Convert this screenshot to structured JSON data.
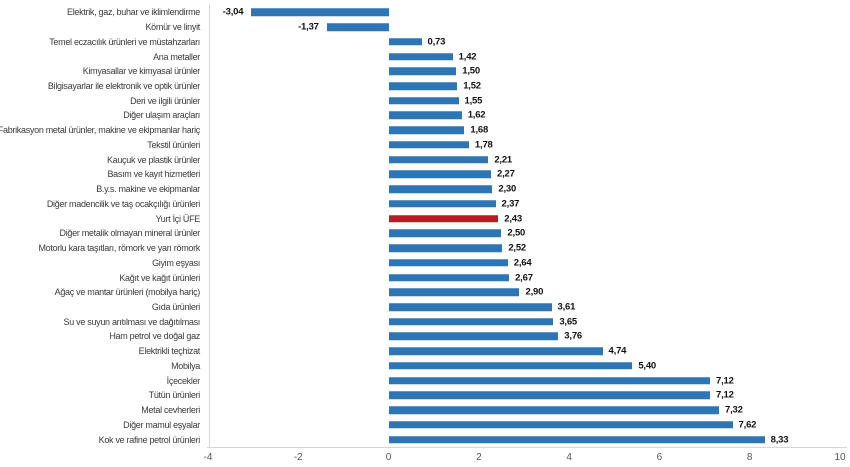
{
  "chart_data": {
    "type": "bar",
    "orientation": "horizontal",
    "title": "",
    "xlabel": "",
    "ylabel": "",
    "grid": false,
    "legend": false,
    "xlim": [
      -4,
      10
    ],
    "x_ticks": [
      -4,
      -2,
      0,
      2,
      4,
      6,
      8,
      10
    ],
    "x_tick_labels": [
      "-4",
      "-2",
      "0",
      "2",
      "4",
      "6",
      "8",
      "10"
    ],
    "bar_color": "#2E75B6",
    "highlight_color": "#B21F24",
    "highlight_category": "Yurt İçi ÜFE",
    "highlight_index": 14,
    "categories": [
      "Elektrik, gaz, buhar ve iklimlendirme",
      "Kömür ve linyit",
      "Temel eczacılık ürünleri ve müstahzarları",
      "Ana metaller",
      "Kimyasallar ve kimyasal ürünler",
      "Bilgisayarlar ile elektronik ve optik ürünler",
      "Deri ve ilgili ürünler",
      "Diğer ulaşım araçları",
      "Fabrikasyon metal ürünler, makine ve ekipmanlar hariç",
      "Tekstil ürünleri",
      "Kauçuk ve plastik ürünler",
      "Basım ve kayıt hizmetleri",
      "B.y.s. makine ve ekipmanlar",
      "Diğer madencilik ve taş ocakçılığı ürünleri",
      "Yurt İçi ÜFE",
      "Diğer metalik olmayan mineral ürünler",
      "Motorlu kara taşıtları, römork ve yarı römork",
      "Giyim eşyası",
      "Kağıt ve kağıt ürünleri",
      "Ağaç ve mantar ürünleri (mobilya hariç)",
      "Gıda ürünleri",
      "Su ve suyun arıtılması ve dağıtılması",
      "Ham petrol ve doğal gaz",
      "Elektrikli teçhizat",
      "Mobilya",
      "İçecekler",
      "Tütün ürünleri",
      "Metal cevherleri",
      "Diğer mamul eşyalar",
      "Kok ve rafine petrol ürünleri"
    ],
    "values": [
      -3.04,
      -1.37,
      0.73,
      1.42,
      1.5,
      1.52,
      1.55,
      1.62,
      1.68,
      1.78,
      2.21,
      2.27,
      2.3,
      2.37,
      2.43,
      2.5,
      2.52,
      2.64,
      2.67,
      2.9,
      3.61,
      3.65,
      3.76,
      4.74,
      5.4,
      7.12,
      7.12,
      7.32,
      7.62,
      8.33
    ],
    "value_labels": [
      "-3,04",
      "-1,37",
      "0,73",
      "1,42",
      "1,50",
      "1,52",
      "1,55",
      "1,62",
      "1,68",
      "1,78",
      "2,21",
      "2,27",
      "2,30",
      "2,37",
      "2,43",
      "2,50",
      "2,52",
      "2,64",
      "2,67",
      "2,90",
      "3,61",
      "3,65",
      "3,76",
      "4,74",
      "5,40",
      "7,12",
      "7,12",
      "7,32",
      "7,62",
      "8,33"
    ]
  }
}
